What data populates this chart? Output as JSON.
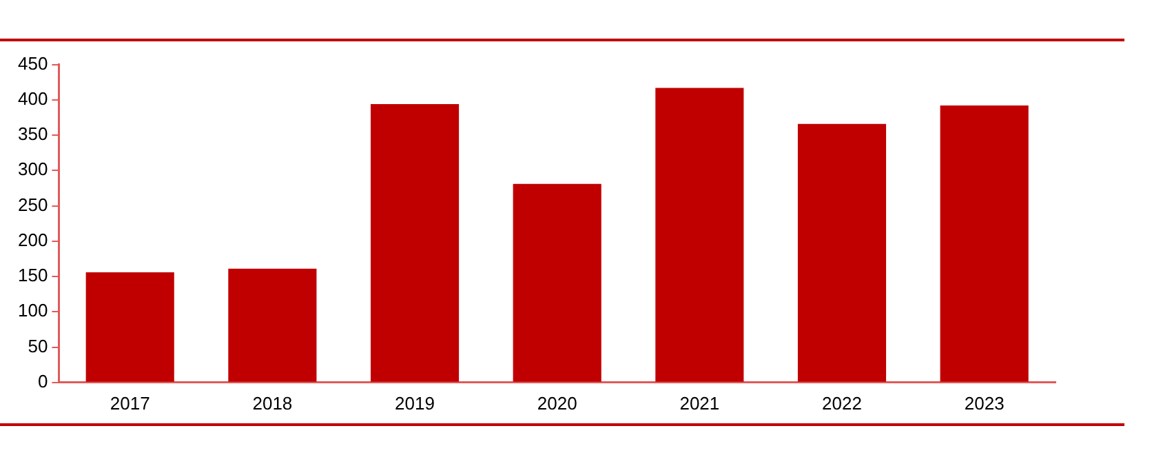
{
  "chart_data": {
    "type": "bar",
    "categories": [
      "2017",
      "2018",
      "2019",
      "2020",
      "2021",
      "2022",
      "2023"
    ],
    "values": [
      156,
      161,
      394,
      281,
      417,
      366,
      392
    ],
    "color": "#c00000",
    "ylim": [
      0,
      450
    ],
    "yticks": [
      0,
      50,
      100,
      150,
      200,
      250,
      300,
      350,
      400,
      450
    ],
    "grid": false,
    "legend": false
  }
}
